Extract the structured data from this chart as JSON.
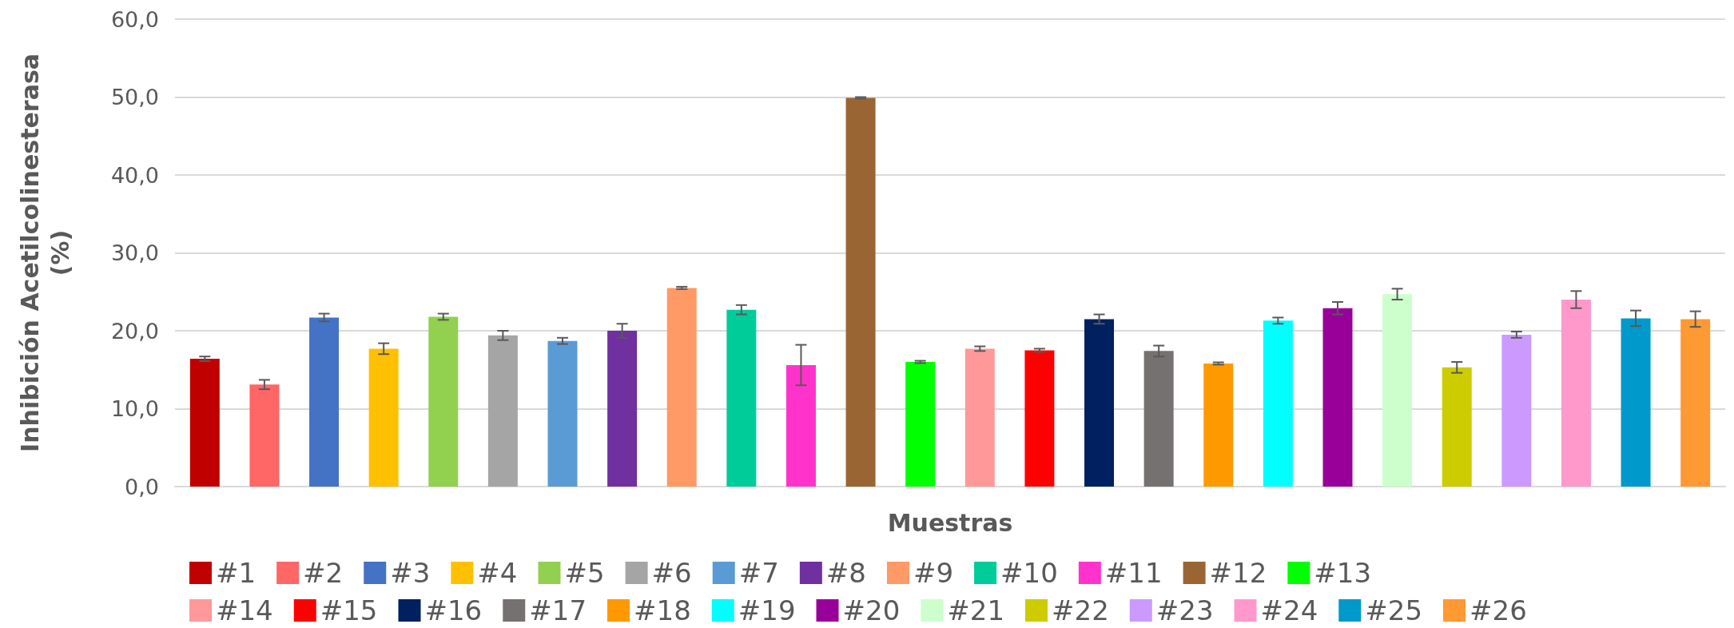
{
  "chart_data": {
    "type": "bar",
    "xlabel": "Muestras",
    "ylabel": "Inhibición Acetilcolinesterasa\n(%)",
    "categories": [
      null
    ],
    "ylim": [
      0,
      60
    ],
    "yticks": [
      {
        "value": 0,
        "label": "0,0"
      },
      {
        "value": 10,
        "label": "10,0"
      },
      {
        "value": 20,
        "label": "20,0"
      },
      {
        "value": 30,
        "label": "30,0"
      },
      {
        "value": 40,
        "label": "40,0"
      },
      {
        "value": 50,
        "label": "50,0"
      },
      {
        "value": 60,
        "label": "60,0"
      }
    ],
    "grid": "y",
    "legend": "bottom",
    "series": [
      {
        "name": "#1",
        "color": "#c00000",
        "values": [
          16.4
        ],
        "errors": [
          0.3
        ]
      },
      {
        "name": "#2",
        "color": "#ff6666",
        "values": [
          13.1
        ],
        "errors": [
          0.6
        ]
      },
      {
        "name": "#3",
        "color": "#4472c4",
        "values": [
          21.7
        ],
        "errors": [
          0.5
        ]
      },
      {
        "name": "#4",
        "color": "#ffc000",
        "values": [
          17.7
        ],
        "errors": [
          0.7
        ]
      },
      {
        "name": "#5",
        "color": "#92d050",
        "values": [
          21.8
        ],
        "errors": [
          0.4
        ]
      },
      {
        "name": "#6",
        "color": "#a5a5a5",
        "values": [
          19.4
        ],
        "errors": [
          0.6
        ]
      },
      {
        "name": "#7",
        "color": "#5b9bd5",
        "values": [
          18.7
        ],
        "errors": [
          0.4
        ]
      },
      {
        "name": "#8",
        "color": "#7030a0",
        "values": [
          20.0
        ],
        "errors": [
          0.9
        ]
      },
      {
        "name": "#9",
        "color": "#ff9966",
        "values": [
          25.5
        ],
        "errors": [
          0.15
        ]
      },
      {
        "name": "#10",
        "color": "#00cc99",
        "values": [
          22.7
        ],
        "errors": [
          0.6
        ]
      },
      {
        "name": "#11",
        "color": "#ff33cc",
        "values": [
          15.6
        ],
        "errors": [
          2.6
        ]
      },
      {
        "name": "#12",
        "color": "#996633",
        "values": [
          49.9
        ],
        "errors": [
          0.1
        ]
      },
      {
        "name": "#13",
        "color": "#00ff00",
        "values": [
          16.0
        ],
        "errors": [
          0.15
        ]
      },
      {
        "name": "#14",
        "color": "#ff9999",
        "values": [
          17.7
        ],
        "errors": [
          0.3
        ]
      },
      {
        "name": "#15",
        "color": "#ff0000",
        "values": [
          17.5
        ],
        "errors": [
          0.2
        ]
      },
      {
        "name": "#16",
        "color": "#002060",
        "values": [
          21.5
        ],
        "errors": [
          0.6
        ]
      },
      {
        "name": "#17",
        "color": "#767171",
        "values": [
          17.4
        ],
        "errors": [
          0.7
        ]
      },
      {
        "name": "#18",
        "color": "#ff9900",
        "values": [
          15.8
        ],
        "errors": [
          0.15
        ]
      },
      {
        "name": "#19",
        "color": "#00ffff",
        "values": [
          21.3
        ],
        "errors": [
          0.4
        ]
      },
      {
        "name": "#20",
        "color": "#990099",
        "values": [
          22.9
        ],
        "errors": [
          0.8
        ]
      },
      {
        "name": "#21",
        "color": "#ccffcc",
        "values": [
          24.7
        ],
        "errors": [
          0.7
        ]
      },
      {
        "name": "#22",
        "color": "#cccc00",
        "values": [
          15.3
        ],
        "errors": [
          0.7
        ]
      },
      {
        "name": "#23",
        "color": "#cc99ff",
        "values": [
          19.5
        ],
        "errors": [
          0.4
        ]
      },
      {
        "name": "#24",
        "color": "#ff99cc",
        "values": [
          24.0
        ],
        "errors": [
          1.1
        ]
      },
      {
        "name": "#25",
        "color": "#0099cc",
        "values": [
          21.6
        ],
        "errors": [
          1.0
        ]
      },
      {
        "name": "#26",
        "color": "#ff9933",
        "values": [
          21.5
        ],
        "errors": [
          1.0
        ]
      }
    ]
  }
}
